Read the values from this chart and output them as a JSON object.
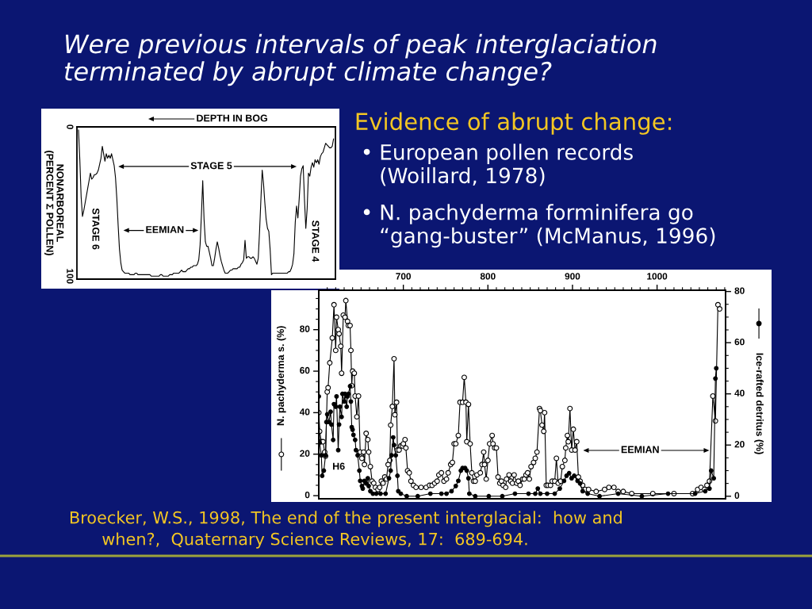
{
  "chart_data": [
    {
      "type": "other",
      "title": "Were previous intervals of peak interglaciation\nterminated by abrupt climate change?"
    },
    {
      "type": "line",
      "xlabel": "DEPTH IN BOG",
      "ylabel": "NONARBOREAL\n(PERCENT Σ POLLEN)",
      "tick_labels": "y",
      "ylim": [
        102,
        0
      ],
      "yticks": [
        0,
        100
      ],
      "categories": [
        null,
        null,
        null,
        null,
        null,
        null,
        null,
        null,
        null,
        null,
        null,
        null,
        null,
        null,
        null,
        null,
        null,
        null,
        null,
        null,
        null,
        null,
        null,
        null,
        null,
        null,
        null,
        null,
        null,
        null,
        null,
        null,
        null,
        null,
        null,
        null,
        null,
        null,
        null,
        null,
        null,
        null,
        null,
        null,
        null,
        null,
        null,
        null,
        null,
        null,
        null,
        null,
        null,
        null,
        null,
        null,
        null,
        null,
        null,
        null,
        null,
        null,
        null,
        null,
        null,
        null,
        null,
        null,
        null,
        null,
        null,
        null,
        null,
        null,
        null,
        null,
        null,
        null,
        null,
        null,
        null,
        null,
        null,
        null,
        null,
        null,
        null,
        null,
        null,
        null,
        null,
        null,
        null,
        null,
        null,
        null,
        null,
        null,
        null,
        null,
        null,
        null,
        null,
        null,
        null,
        null,
        null,
        null,
        null,
        null,
        null,
        null,
        null,
        null,
        null,
        null,
        null,
        null,
        null,
        null,
        null,
        null,
        null,
        null,
        null,
        null,
        null,
        null,
        null,
        null,
        null,
        null,
        null,
        null,
        null,
        null,
        null,
        null,
        null,
        null,
        null,
        null,
        null,
        null,
        null,
        null,
        null,
        null,
        null,
        null,
        null,
        null,
        null,
        null,
        null,
        null,
        null,
        null,
        null,
        null,
        null,
        null,
        null,
        null,
        null,
        null,
        null,
        null,
        null,
        null,
        null,
        null,
        null,
        null,
        null,
        null,
        null,
        null,
        null,
        null,
        null,
        null,
        null,
        null,
        null,
        null,
        null,
        null,
        null,
        null,
        null,
        null,
        null,
        null
      ],
      "series": [
        {
          "color": "#000000",
          "values": [
            2,
            22,
            47,
            60,
            56,
            51,
            46,
            41,
            36,
            31,
            35,
            34,
            32,
            32,
            31,
            29,
            25,
            21,
            13,
            18,
            23,
            18,
            21,
            19,
            21,
            18,
            22,
            26,
            34,
            48,
            66,
            82,
            91,
            96,
            97,
            98,
            98,
            98,
            98,
            99,
            99,
            99,
            99,
            98,
            98,
            99,
            99,
            99,
            99,
            99,
            99,
            99,
            99,
            99,
            99,
            100,
            100,
            100,
            100,
            100,
            100,
            100,
            99,
            99,
            100,
            100,
            100,
            100,
            100,
            99,
            99,
            99,
            98,
            98,
            98,
            98,
            98,
            97,
            96,
            97,
            97,
            97,
            96,
            95,
            95,
            94,
            94,
            93,
            93,
            93,
            92,
            89,
            79,
            59,
            36,
            62,
            77,
            80,
            80,
            84,
            88,
            93,
            93,
            88,
            82,
            77,
            81,
            86,
            90,
            93,
            96,
            98,
            98,
            98,
            97,
            96,
            96,
            95,
            95,
            95,
            95,
            94,
            94,
            92,
            91,
            89,
            76,
            88,
            87,
            87,
            88,
            88,
            87,
            88,
            90,
            92,
            88,
            70,
            49,
            29,
            38,
            51,
            62,
            68,
            70,
            82,
            99,
            98,
            98,
            98,
            98,
            98,
            98,
            98,
            98,
            98,
            98,
            98,
            98,
            97,
            97,
            95,
            92,
            85,
            64,
            53,
            61,
            48,
            33,
            28,
            26,
            49,
            68,
            55,
            31,
            33,
            27,
            24,
            27,
            22,
            24,
            22,
            25,
            20,
            18,
            17,
            14,
            11,
            12,
            13,
            14,
            14,
            13,
            8
          ]
        }
      ],
      "annotations": [
        "STAGE 5",
        "EEMIAN",
        "STAGE 6",
        "STAGE 4"
      ]
    },
    {
      "type": "other",
      "title": "Evidence of abrupt change:",
      "annotations": [
        "•",
        "European pollen records\n(Woillard, 1978)",
        "•",
        "N. pachyderma forminifera go\n“gang-buster” (McManus, 1996)"
      ]
    },
    {
      "type": "line",
      "marker": "circle",
      "ylabel": "N. pachyderma s. (%)",
      "y2label": "Ice-rafted detritus (%)",
      "xlim": [
        600,
        1081
      ],
      "xticks": [
        {
          "value": 610,
          "label": null
        },
        {
          "value": 620,
          "label": null
        },
        {
          "value": 630,
          "label": null
        },
        {
          "value": 640,
          "label": null
        },
        {
          "value": 650,
          "label": null
        },
        {
          "value": 660,
          "label": null
        },
        {
          "value": 670,
          "label": null
        },
        {
          "value": 680,
          "label": null
        },
        {
          "value": 690,
          "label": null
        },
        700,
        {
          "value": 710,
          "label": null
        },
        {
          "value": 720,
          "label": null
        },
        {
          "value": 730,
          "label": null
        },
        {
          "value": 740,
          "label": null
        },
        {
          "value": 750,
          "label": null
        },
        {
          "value": 760,
          "label": null
        },
        {
          "value": 770,
          "label": null
        },
        {
          "value": 780,
          "label": null
        },
        {
          "value": 790,
          "label": null
        },
        800,
        {
          "value": 810,
          "label": null
        },
        {
          "value": 820,
          "label": null
        },
        {
          "value": 830,
          "label": null
        },
        {
          "value": 840,
          "label": null
        },
        {
          "value": 850,
          "label": null
        },
        {
          "value": 860,
          "label": null
        },
        {
          "value": 870,
          "label": null
        },
        {
          "value": 880,
          "label": null
        },
        {
          "value": 890,
          "label": null
        },
        900,
        {
          "value": 910,
          "label": null
        },
        {
          "value": 920,
          "label": null
        },
        {
          "value": 930,
          "label": null
        },
        {
          "value": 940,
          "label": null
        },
        {
          "value": 950,
          "label": null
        },
        {
          "value": 960,
          "label": null
        },
        {
          "value": 970,
          "label": null
        },
        {
          "value": 980,
          "label": null
        },
        {
          "value": 990,
          "label": null
        },
        1000,
        {
          "value": 1010,
          "label": null
        },
        {
          "value": 1020,
          "label": null
        },
        {
          "value": 1030,
          "label": null
        },
        {
          "value": 1040,
          "label": null
        },
        {
          "value": 1050,
          "label": null
        },
        {
          "value": 1060,
          "label": null
        },
        {
          "value": 1070,
          "label": null
        },
        {
          "value": 1080,
          "label": null
        }
      ],
      "ylim": [
        -1.5,
        99
      ],
      "yticks": [
        0,
        {
          "value": 5,
          "label": null
        },
        {
          "value": 10,
          "label": null
        },
        {
          "value": 15,
          "label": null
        },
        20,
        {
          "value": 25,
          "label": null
        },
        {
          "value": 30,
          "label": null
        },
        {
          "value": 35,
          "label": null
        },
        40,
        {
          "value": 45,
          "label": null
        },
        {
          "value": 50,
          "label": null
        },
        {
          "value": 55,
          "label": null
        },
        60,
        {
          "value": 65,
          "label": null
        },
        {
          "value": 70,
          "label": null
        },
        {
          "value": 75,
          "label": null
        },
        80,
        {
          "value": 85,
          "label": null
        },
        {
          "value": 90,
          "label": null
        },
        {
          "value": 95,
          "label": null
        }
      ],
      "y2lim": [
        -1,
        80.5
      ],
      "y2ticks": [
        0,
        {
          "value": 5,
          "label": null
        },
        {
          "value": 10,
          "label": null
        },
        {
          "value": 15,
          "label": null
        },
        20,
        {
          "value": 25,
          "label": null
        },
        {
          "value": 30,
          "label": null
        },
        {
          "value": 35,
          "label": null
        },
        40,
        {
          "value": 45,
          "label": null
        },
        {
          "value": 50,
          "label": null
        },
        {
          "value": 55,
          "label": null
        },
        60,
        {
          "value": 65,
          "label": null
        },
        {
          "value": 70,
          "label": null
        },
        {
          "value": 75,
          "label": null
        },
        80
      ],
      "series": [
        {
          "color": "#000000",
          "x": [
            600,
            601,
            603,
            605,
            607,
            608,
            610,
            611,
            613,
            616,
            618,
            620,
            621,
            623,
            624,
            626,
            627,
            629,
            631,
            632,
            634,
            635,
            637,
            638,
            639,
            640,
            642,
            643,
            645,
            647,
            649,
            651,
            653,
            654,
            656,
            658,
            659,
            661,
            663,
            665,
            667,
            670,
            672,
            674,
            676,
            678,
            680,
            682,
            684,
            685,
            687,
            689,
            690,
            692,
            693,
            695,
            697,
            699,
            700,
            702,
            703,
            705,
            707,
            709,
            712,
            715,
            721,
            727,
            731,
            734,
            737,
            740,
            742,
            745,
            748,
            751,
            753,
            756,
            758,
            760,
            762,
            765,
            767,
            770,
            772,
            774,
            775,
            777,
            779,
            781,
            783,
            785,
            787,
            791,
            793,
            795,
            796,
            798,
            800,
            802,
            805,
            806,
            808,
            810,
            812,
            814,
            816,
            818,
            821,
            822,
            825,
            827,
            829,
            831,
            834,
            836,
            838,
            841,
            843,
            845,
            847,
            849,
            851,
            854,
            856,
            858,
            861,
            862,
            864,
            866,
            867,
            869,
            871,
            874,
            876,
            879,
            881,
            883,
            886,
            888,
            891,
            892,
            894,
            895,
            897,
            899,
            901,
            903,
            905,
            907,
            909,
            912,
            915,
            919,
            928,
            938,
            943,
            949,
            954,
            960,
            970,
            995,
            1020,
            1042,
            1048,
            1052,
            1056,
            1059,
            1062,
            1066,
            1069,
            1072,
            1074
          ],
          "values": [
            40,
            31,
            26,
            26,
            21,
            19,
            50,
            52,
            64,
            76,
            92,
            70,
            86,
            80,
            78,
            72,
            59,
            87,
            86,
            94,
            84,
            82,
            82,
            70,
            53,
            60,
            59,
            48,
            38,
            48,
            21,
            18,
            21,
            15,
            30,
            27,
            21,
            14,
            7,
            6,
            4,
            3,
            4,
            7,
            6,
            9,
            8,
            15,
            17,
            34,
            43,
            66,
            39,
            45,
            22,
            22,
            24,
            24,
            25,
            27,
            23,
            12,
            11,
            7,
            5,
            4,
            4,
            4,
            5,
            5,
            6,
            7,
            10,
            11,
            7,
            8,
            11,
            15,
            16,
            25,
            25,
            29,
            45,
            45,
            57,
            45,
            26,
            44,
            25,
            11,
            7,
            7,
            10,
            11,
            15,
            21,
            15,
            8,
            17,
            25,
            29,
            25,
            23,
            23,
            9,
            6,
            7,
            5,
            4,
            8,
            10,
            7,
            6,
            10,
            6,
            7,
            5,
            8,
            8,
            10,
            11,
            8,
            14,
            16,
            18,
            21,
            42,
            41,
            34,
            31,
            40,
            5,
            5,
            5,
            7,
            7,
            18,
            6,
            7,
            14,
            17,
            23,
            29,
            26,
            42,
            22,
            32,
            22,
            26,
            9,
            7,
            5,
            3,
            3,
            2,
            3,
            4,
            4,
            2,
            2,
            1,
            1,
            1,
            1,
            3,
            4,
            3,
            5,
            7,
            48,
            36,
            92,
            90
          ]
        },
        {
          "color": "#000000",
          "axis": "y2",
          "x": [
            600,
            601,
            603,
            604,
            606,
            608,
            609,
            610,
            612,
            614,
            615,
            617,
            618,
            620,
            621,
            623,
            624,
            625,
            627,
            628,
            630,
            631,
            633,
            634,
            635,
            637,
            638,
            639,
            640,
            641,
            643,
            644,
            646,
            648,
            649,
            651,
            652,
            654,
            656,
            658,
            659,
            661,
            664,
            668,
            673,
            679,
            683,
            685,
            686,
            688,
            689,
            691,
            693,
            694,
            697,
            704,
            717,
            732,
            745,
            751,
            757,
            762,
            765,
            768,
            770,
            773,
            775,
            777,
            778,
            785,
            801,
            817,
            832,
            848,
            856,
            859,
            862,
            870,
            879,
            885,
            890,
            893,
            896,
            899,
            902,
            906,
            909,
            912,
            918,
            932,
            954,
            982,
            1013,
            1045,
            1057,
            1062,
            1064,
            1067,
            1069,
            1070
          ],
          "values": [
            39,
            21,
            16,
            8,
            10,
            16,
            29,
            32,
            29,
            33,
            28,
            22,
            36,
            35,
            39,
            18,
            28,
            35,
            31,
            40,
            37,
            40,
            35,
            39,
            40,
            43,
            37,
            27,
            26,
            24,
            22,
            18,
            16,
            10,
            6,
            4,
            3,
            6,
            5,
            7,
            4,
            2,
            1,
            1,
            1,
            1,
            7,
            10,
            16,
            23,
            20,
            16,
            8,
            2,
            1,
            0,
            0,
            1,
            1,
            1,
            2,
            4,
            6,
            10,
            11,
            11,
            10,
            7,
            1,
            0,
            0,
            0,
            1,
            1,
            1,
            3,
            1,
            1,
            1,
            3,
            6,
            8,
            9,
            7,
            8,
            6,
            5,
            2,
            1,
            0,
            1,
            0,
            1,
            1,
            2,
            3,
            10,
            7,
            46,
            50
          ]
        }
      ],
      "annotations": [
        "H6",
        "EEMIAN"
      ]
    },
    {
      "type": "other",
      "annotations": [
        "Broecker, W.S., 1998, The end of the present interglacial:  how and",
        "when?,  Quaternary Science Reviews, 17:  689-694."
      ]
    }
  ]
}
